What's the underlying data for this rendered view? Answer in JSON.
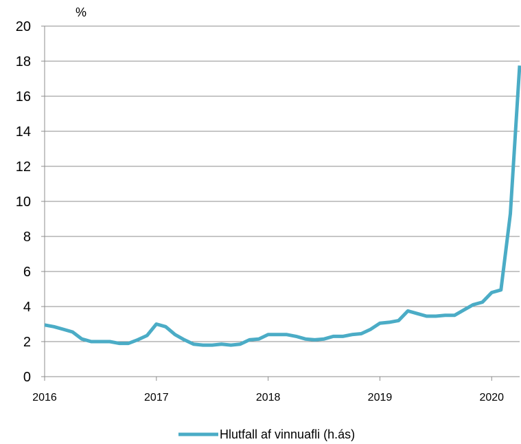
{
  "chart_data": {
    "type": "line",
    "title": "",
    "xlabel": "",
    "ylabel": "%",
    "ylim": [
      0,
      20
    ],
    "yticks": [
      0,
      2,
      4,
      6,
      8,
      10,
      12,
      14,
      16,
      18,
      20
    ],
    "xlim": [
      2016.0,
      2020.25
    ],
    "xticks": [
      2016,
      2017,
      2018,
      2019,
      2020
    ],
    "grid": "horizontal",
    "legend_position": "bottom",
    "series": [
      {
        "name": "Hlutfall af vinnuafli (h.ás)",
        "color": "#4bacc6",
        "x": [
          2016.0,
          2016.083,
          2016.167,
          2016.25,
          2016.333,
          2016.417,
          2016.5,
          2016.583,
          2016.667,
          2016.75,
          2016.833,
          2016.917,
          2017.0,
          2017.083,
          2017.167,
          2017.25,
          2017.333,
          2017.417,
          2017.5,
          2017.583,
          2017.667,
          2017.75,
          2017.833,
          2017.917,
          2018.0,
          2018.083,
          2018.167,
          2018.25,
          2018.333,
          2018.417,
          2018.5,
          2018.583,
          2018.667,
          2018.75,
          2018.833,
          2018.917,
          2019.0,
          2019.083,
          2019.167,
          2019.25,
          2019.333,
          2019.417,
          2019.5,
          2019.583,
          2019.667,
          2019.75,
          2019.833,
          2019.917,
          2020.0,
          2020.083,
          2020.167,
          2020.25
        ],
        "y": [
          2.95,
          2.85,
          2.7,
          2.55,
          2.15,
          2.0,
          2.0,
          2.0,
          1.9,
          1.9,
          2.1,
          2.35,
          3.0,
          2.85,
          2.4,
          2.1,
          1.85,
          1.8,
          1.8,
          1.85,
          1.8,
          1.85,
          2.1,
          2.15,
          2.4,
          2.4,
          2.4,
          2.3,
          2.15,
          2.1,
          2.15,
          2.3,
          2.3,
          2.4,
          2.45,
          2.7,
          3.05,
          3.1,
          3.2,
          3.75,
          3.6,
          3.45,
          3.45,
          3.5,
          3.5,
          3.8,
          4.1,
          4.25,
          4.8,
          4.95,
          9.3,
          17.75
        ]
      }
    ]
  }
}
